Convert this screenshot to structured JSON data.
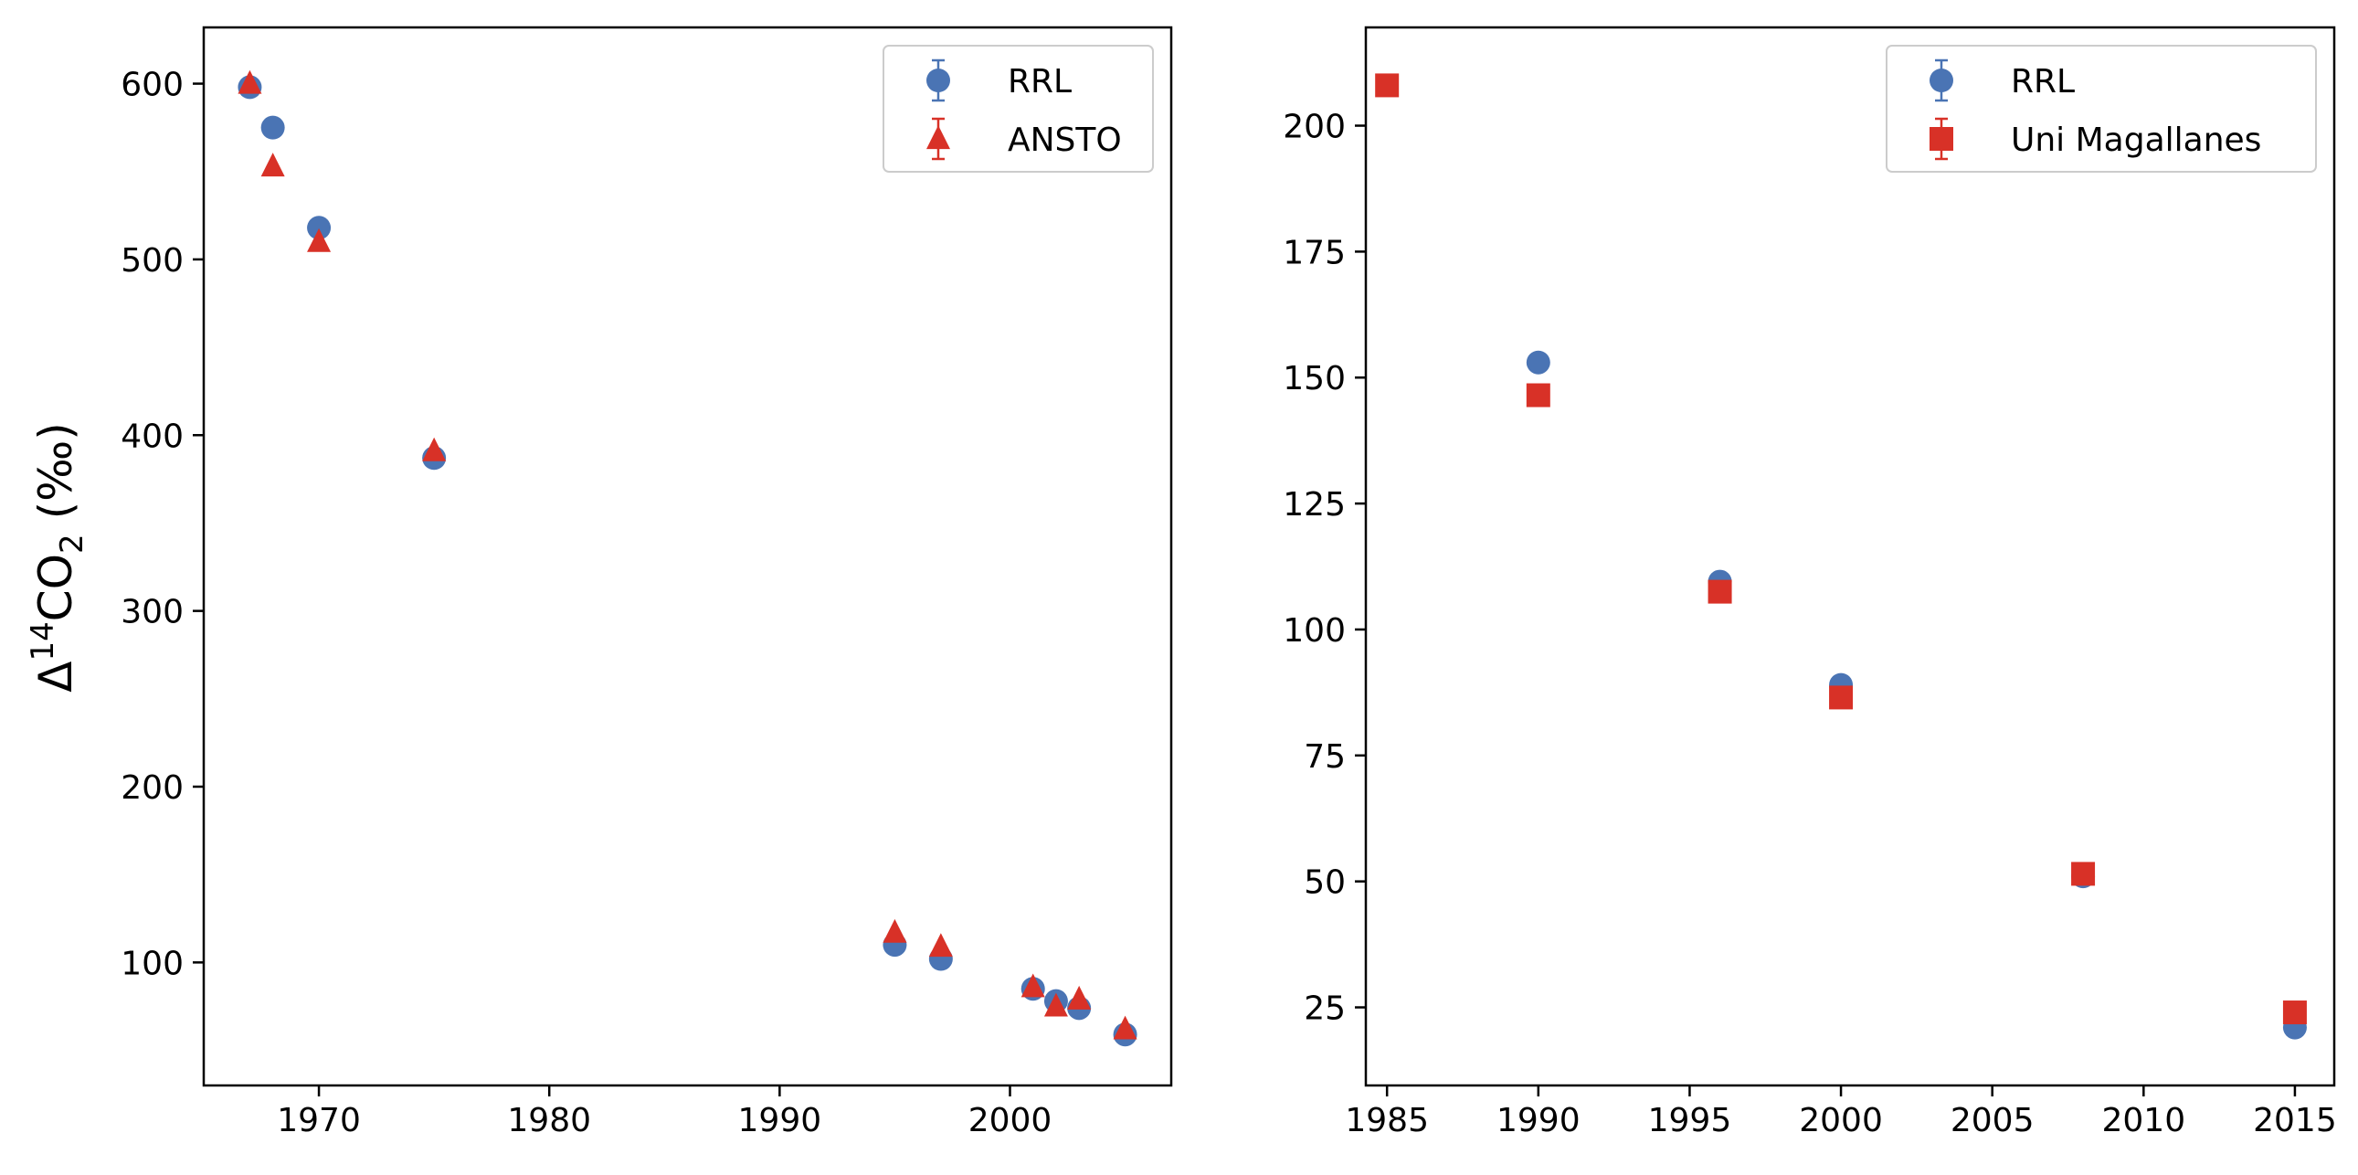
{
  "figure": {
    "ylabel": {
      "prefix": "Δ",
      "superscript": "14",
      "main": "CO",
      "subscript": "2",
      "suffix": " (‰)"
    }
  },
  "chart_data": [
    {
      "type": "scatter",
      "title": "",
      "xlabel": "",
      "ylabel": "Δ14CO2 (‰)",
      "xlim": [
        1965,
        2007
      ],
      "ylim": [
        30,
        632
      ],
      "xticks": [
        1970,
        1980,
        1990,
        2000
      ],
      "yticks": [
        100,
        200,
        300,
        400,
        500,
        600
      ],
      "grid": false,
      "legend": "top-right",
      "series": [
        {
          "name": "RRL",
          "marker": "circle",
          "color": "#4a74b4",
          "x": [
            1967,
            1968,
            1970,
            1975,
            1995,
            1997,
            2001,
            2002,
            2003,
            2005
          ],
          "y": [
            598,
            575,
            518,
            387,
            110,
            102,
            85,
            78,
            74,
            59
          ]
        },
        {
          "name": "ANSTO",
          "marker": "triangle",
          "color": "#d83127",
          "x": [
            1967,
            1968,
            1970,
            1975,
            1995,
            1997,
            2001,
            2002,
            2003,
            2005
          ],
          "y": [
            600,
            553,
            510,
            391,
            117,
            109,
            86,
            75,
            79,
            62
          ]
        }
      ]
    },
    {
      "type": "scatter",
      "title": "",
      "xlabel": "",
      "ylabel": "",
      "xlim": [
        1984.3,
        2016.3
      ],
      "ylim": [
        9.5,
        219.5
      ],
      "xticks": [
        1985,
        1990,
        1995,
        2000,
        2005,
        2010,
        2015
      ],
      "yticks": [
        25,
        50,
        75,
        100,
        125,
        150,
        175,
        200
      ],
      "grid": false,
      "legend": "top-right",
      "series": [
        {
          "name": "RRL",
          "marker": "circle",
          "color": "#4a74b4",
          "x": [
            1990,
            1996,
            2000,
            2008,
            2015
          ],
          "y": [
            153,
            109.5,
            89,
            51,
            21
          ]
        },
        {
          "name": "Uni Magallanes",
          "marker": "square",
          "color": "#d83127",
          "x": [
            1985,
            1990,
            1996,
            2000,
            2008,
            2015
          ],
          "y": [
            208,
            146.5,
            107.5,
            86.5,
            51.5,
            24
          ]
        }
      ]
    }
  ]
}
